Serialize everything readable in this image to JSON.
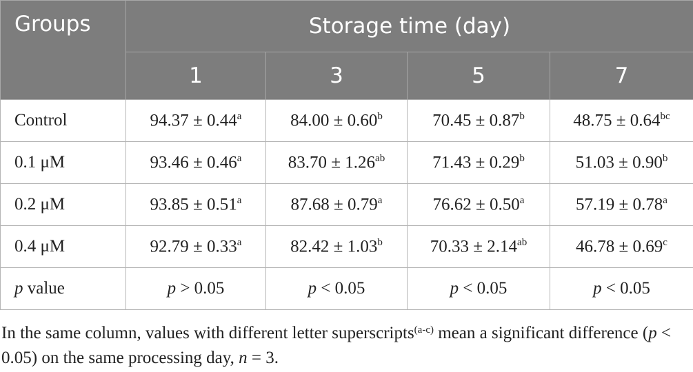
{
  "header": {
    "groups": "Groups",
    "storage": "Storage time (day)",
    "days": [
      "1",
      "3",
      "5",
      "7"
    ]
  },
  "table": {
    "rows": [
      {
        "group": "Control",
        "cells": [
          {
            "text": "94.37 ± 0.44",
            "sup": "a"
          },
          {
            "text": "84.00 ± 0.60",
            "sup": "b"
          },
          {
            "text": "70.45 ± 0.87",
            "sup": "b"
          },
          {
            "text": "48.75 ± 0.64",
            "sup": "bc"
          }
        ]
      },
      {
        "group": "0.1 μM",
        "cells": [
          {
            "text": "93.46 ± 0.46",
            "sup": "a"
          },
          {
            "text": "83.70 ± 1.26",
            "sup": "ab"
          },
          {
            "text": "71.43 ± 0.29",
            "sup": "b"
          },
          {
            "text": "51.03 ± 0.90",
            "sup": "b"
          }
        ]
      },
      {
        "group": "0.2 μM",
        "cells": [
          {
            "text": "93.85 ± 0.51",
            "sup": "a"
          },
          {
            "text": "87.68 ± 0.79",
            "sup": "a"
          },
          {
            "text": "76.62 ± 0.50",
            "sup": "a"
          },
          {
            "text": "57.19 ± 0.78",
            "sup": "a"
          }
        ]
      },
      {
        "group": "0.4 μM",
        "cells": [
          {
            "text": "92.79 ± 0.33",
            "sup": "a"
          },
          {
            "text": "82.42 ± 1.03",
            "sup": "b"
          },
          {
            "text": "70.33 ± 2.14",
            "sup": "ab"
          },
          {
            "text": "46.78 ± 0.69",
            "sup": "c"
          }
        ]
      }
    ],
    "pvalue": {
      "label": {
        "italic": "p",
        "text": "value"
      },
      "cells": [
        {
          "italic": "p",
          "text": "> 0.05"
        },
        {
          "italic": "p",
          "text": "< 0.05"
        },
        {
          "italic": "p",
          "text": "< 0.05"
        },
        {
          "italic": "p",
          "text": "< 0.05"
        }
      ]
    }
  },
  "footnote": {
    "parts": [
      {
        "text": "In the same column, values with different letter superscripts"
      },
      {
        "text": "(a-c)",
        "style": "sup"
      },
      {
        "text": " mean a significant difference ("
      },
      {
        "text": "p",
        "style": "italic"
      },
      {
        "text": " < 0.05) on the same processing day, "
      },
      {
        "text": "n",
        "style": "italic"
      },
      {
        "text": " = 3."
      }
    ]
  }
}
